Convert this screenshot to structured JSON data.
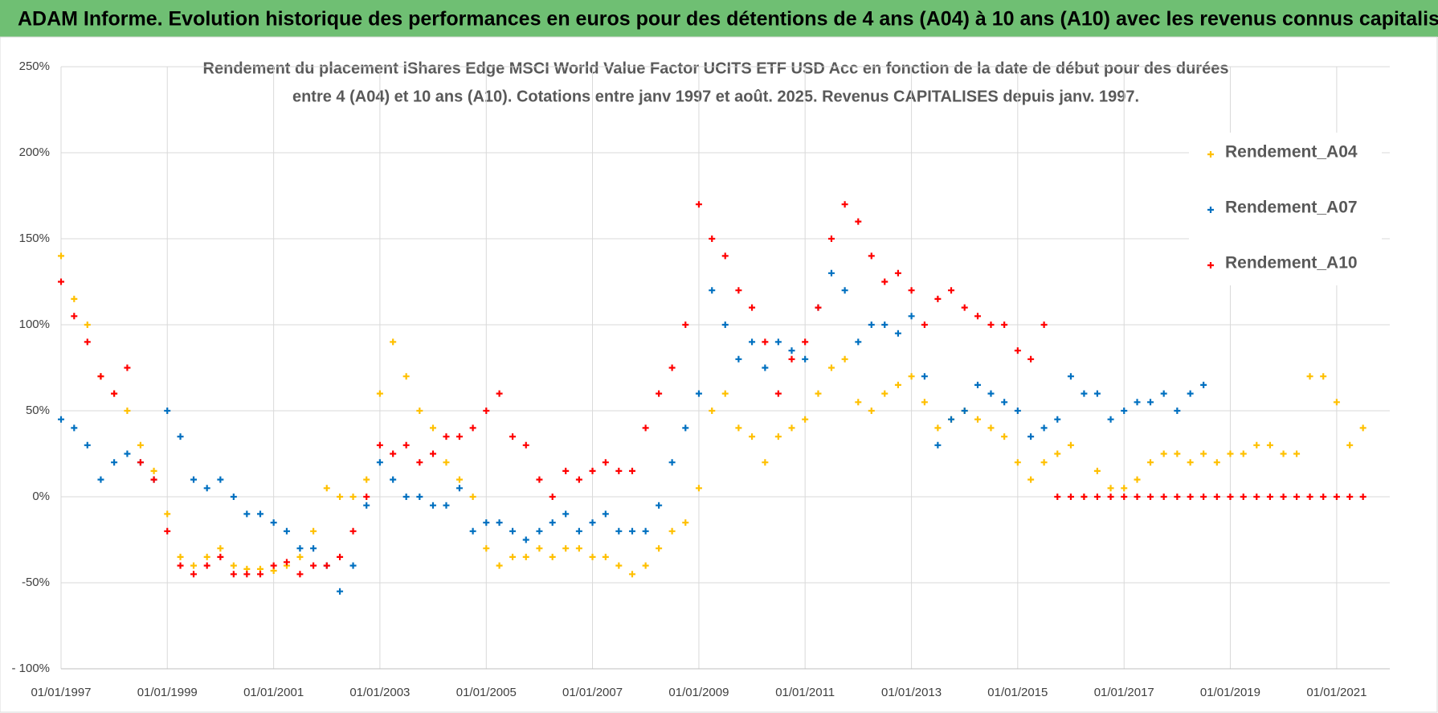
{
  "chart_data": {
    "type": "scatter",
    "title": "ADAM Informe. Evolution historique des performances en euros pour des détentions de 4 ans (A04) à 10 ans (A10) avec les revenus connus capitalisés",
    "subtitle": [
      "Rendement du placement iShares Edge MSCI World Value Factor UCITS ETF USD Acc en fonction de la date de début pour des durées",
      "entre 4 (A04) et 10 ans (A10).  Cotations entre janv 1997 et août. 2025. Revenus CAPITALISES depuis janv. 1997."
    ],
    "x": [
      "1997-01-01",
      "1997-04-01",
      "1997-07-01",
      "1997-10-01",
      "1998-01-01",
      "1998-04-01",
      "1998-07-01",
      "1998-10-01",
      "1999-01-01",
      "1999-04-01",
      "1999-07-01",
      "1999-10-01",
      "2000-01-01",
      "2000-04-01",
      "2000-07-01",
      "2000-10-01",
      "2001-01-01",
      "2001-04-01",
      "2001-07-01",
      "2001-10-01",
      "2002-01-01",
      "2002-04-01",
      "2002-07-01",
      "2002-10-01",
      "2003-01-01",
      "2003-04-01",
      "2003-07-01",
      "2003-10-01",
      "2004-01-01",
      "2004-04-01",
      "2004-07-01",
      "2004-10-01",
      "2005-01-01",
      "2005-04-01",
      "2005-07-01",
      "2005-10-01",
      "2006-01-01",
      "2006-04-01",
      "2006-07-01",
      "2006-10-01",
      "2007-01-01",
      "2007-04-01",
      "2007-07-01",
      "2007-10-01",
      "2008-01-01",
      "2008-04-01",
      "2008-07-01",
      "2008-10-01",
      "2009-01-01",
      "2009-04-01",
      "2009-07-01",
      "2009-10-01",
      "2010-01-01",
      "2010-04-01",
      "2010-07-01",
      "2010-10-01",
      "2011-01-01",
      "2011-04-01",
      "2011-07-01",
      "2011-10-01",
      "2012-01-01",
      "2012-04-01",
      "2012-07-01",
      "2012-10-01",
      "2013-01-01",
      "2013-04-01",
      "2013-07-01",
      "2013-10-01",
      "2014-01-01",
      "2014-04-01",
      "2014-07-01",
      "2014-10-01",
      "2015-01-01",
      "2015-04-01",
      "2015-07-01",
      "2015-10-01",
      "2016-01-01",
      "2016-04-01",
      "2016-07-01",
      "2016-10-01",
      "2017-01-01",
      "2017-04-01",
      "2017-07-01",
      "2017-10-01",
      "2018-01-01",
      "2018-04-01",
      "2018-07-01",
      "2018-10-01",
      "2019-01-01",
      "2019-04-01",
      "2019-07-01",
      "2019-10-01",
      "2020-01-01",
      "2020-04-01",
      "2020-07-01",
      "2020-10-01",
      "2021-01-01",
      "2021-04-01",
      "2021-07-01"
    ],
    "series": [
      {
        "name": "Rendement_A04",
        "color": "#ffc000",
        "values": [
          140,
          115,
          100,
          70,
          60,
          50,
          30,
          15,
          -10,
          -35,
          -40,
          -35,
          -30,
          -40,
          -42,
          -42,
          -43,
          -40,
          -35,
          -20,
          5,
          0,
          0,
          10,
          60,
          90,
          70,
          50,
          40,
          20,
          10,
          0,
          -30,
          -40,
          -35,
          -35,
          -30,
          -35,
          -30,
          -30,
          -35,
          -35,
          -40,
          -45,
          -40,
          -30,
          -20,
          -15,
          5,
          50,
          60,
          40,
          35,
          20,
          35,
          40,
          45,
          60,
          75,
          80,
          55,
          50,
          60,
          65,
          70,
          55,
          40,
          45,
          50,
          45,
          40,
          35,
          20,
          10,
          20,
          25,
          30,
          0,
          15,
          5,
          5,
          10,
          20,
          25,
          25,
          20,
          25,
          20,
          25,
          25,
          30,
          30,
          25,
          25,
          70,
          70,
          55,
          30,
          40
        ]
      },
      {
        "name": "Rendement_A07",
        "color": "#0070c0",
        "values": [
          45,
          40,
          30,
          10,
          20,
          25,
          20,
          10,
          50,
          35,
          10,
          5,
          10,
          0,
          -10,
          -10,
          -15,
          -20,
          -30,
          -30,
          -40,
          -55,
          -40,
          -5,
          20,
          10,
          0,
          0,
          -5,
          -5,
          5,
          -20,
          -15,
          -15,
          -20,
          -25,
          -20,
          -15,
          -10,
          -20,
          -15,
          -10,
          -20,
          -20,
          -20,
          -5,
          20,
          40,
          60,
          120,
          100,
          80,
          90,
          75,
          90,
          85,
          80,
          110,
          130,
          120,
          90,
          100,
          100,
          95,
          105,
          70,
          30,
          45,
          50,
          65,
          60,
          55,
          50,
          35,
          40,
          45,
          70,
          60,
          60,
          45,
          50,
          55,
          55,
          60,
          50,
          60,
          65,
          null,
          null,
          null,
          null,
          null,
          null,
          null,
          null,
          null,
          null,
          null,
          null
        ]
      },
      {
        "name": "Rendement_A10",
        "color": "#ff0000",
        "values": [
          125,
          105,
          90,
          70,
          60,
          75,
          20,
          10,
          -20,
          -40,
          -45,
          -40,
          -35,
          -45,
          -45,
          -45,
          -40,
          -38,
          -45,
          -40,
          -40,
          -35,
          -20,
          0,
          30,
          25,
          30,
          20,
          25,
          35,
          35,
          40,
          50,
          60,
          35,
          30,
          10,
          0,
          15,
          10,
          15,
          20,
          15,
          15,
          40,
          60,
          75,
          100,
          170,
          150,
          140,
          120,
          110,
          90,
          60,
          80,
          90,
          110,
          150,
          170,
          160,
          140,
          125,
          130,
          120,
          100,
          115,
          120,
          110,
          105,
          100,
          100,
          85,
          80,
          100,
          0,
          0,
          0,
          0,
          0,
          0,
          0,
          0,
          0,
          0,
          0,
          0,
          0,
          0,
          0,
          0,
          0,
          0,
          0,
          0,
          0,
          0,
          0,
          0
        ]
      }
    ],
    "xlim": [
      "1997-01-01",
      "2022-01-01"
    ],
    "xticks": [
      {
        "value": "1997-01-01",
        "label": "01/01/1997"
      },
      {
        "value": "1999-01-01",
        "label": "01/01/1999"
      },
      {
        "value": "2001-01-01",
        "label": "01/01/2001"
      },
      {
        "value": "2003-01-01",
        "label": "01/01/2003"
      },
      {
        "value": "2005-01-01",
        "label": "01/01/2005"
      },
      {
        "value": "2007-01-01",
        "label": "01/01/2007"
      },
      {
        "value": "2009-01-01",
        "label": "01/01/2009"
      },
      {
        "value": "2011-01-01",
        "label": "01/01/2011"
      },
      {
        "value": "2013-01-01",
        "label": "01/01/2013"
      },
      {
        "value": "2015-01-01",
        "label": "01/01/2015"
      },
      {
        "value": "2017-01-01",
        "label": "01/01/2017"
      },
      {
        "value": "2019-01-01",
        "label": "01/01/2019"
      },
      {
        "value": "2021-01-01",
        "label": "01/01/2021"
      }
    ],
    "ylim": [
      -100,
      250
    ],
    "yticks": [
      {
        "value": -100,
        "label": "- 100%"
      },
      {
        "value": -50,
        "label": "-50%"
      },
      {
        "value": 0,
        "label": "0%"
      },
      {
        "value": 50,
        "label": "50%"
      },
      {
        "value": 100,
        "label": "100%"
      },
      {
        "value": 150,
        "label": "150%"
      },
      {
        "value": 200,
        "label": "200%"
      },
      {
        "value": 250,
        "label": "250%"
      }
    ],
    "grid": true,
    "legend": "right"
  }
}
